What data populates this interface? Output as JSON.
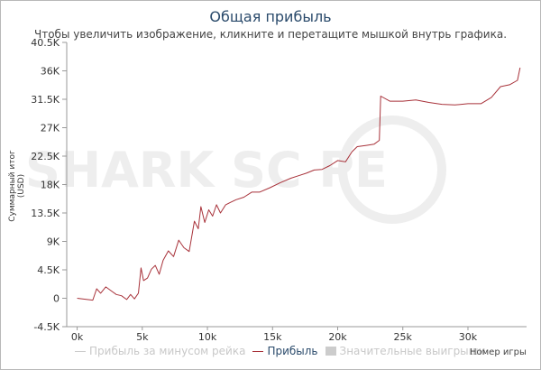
{
  "chart_data": {
    "type": "line",
    "title": "Общая прибыль",
    "subtitle": "Чтобы увеличить изображение, кликните и перетащите мышкой внутрь графика.",
    "ylabel": "Суммарный итог (USD)",
    "xlabel": "Номер игры",
    "xlim": [
      -800,
      34500
    ],
    "ylim": [
      -4500,
      40500
    ],
    "x_ticks": [
      {
        "value": 0,
        "label": "0k"
      },
      {
        "value": 5000,
        "label": "5k"
      },
      {
        "value": 10000,
        "label": "10k"
      },
      {
        "value": 15000,
        "label": "15k"
      },
      {
        "value": 20000,
        "label": "20k"
      },
      {
        "value": 25000,
        "label": "25k"
      },
      {
        "value": 30000,
        "label": "30k"
      }
    ],
    "y_ticks": [
      {
        "value": -4500,
        "label": "-4.5K"
      },
      {
        "value": 0,
        "label": "0"
      },
      {
        "value": 4500,
        "label": "4.5K"
      },
      {
        "value": 9000,
        "label": "9K"
      },
      {
        "value": 13500,
        "label": "13.5K"
      },
      {
        "value": 18000,
        "label": "18K"
      },
      {
        "value": 22500,
        "label": "22.5K"
      },
      {
        "value": 27000,
        "label": "27K"
      },
      {
        "value": 31500,
        "label": "31.5K"
      },
      {
        "value": 36000,
        "label": "36K"
      },
      {
        "value": 40500,
        "label": "40.5K"
      }
    ],
    "grid": false,
    "legend_position": "bottom",
    "series": [
      {
        "name": "Прибыль",
        "color": "#a8323a",
        "x": [
          0,
          1200,
          1500,
          1800,
          2200,
          2600,
          3000,
          3400,
          3800,
          4100,
          4400,
          4700,
          4900,
          5100,
          5400,
          5700,
          6000,
          6300,
          6600,
          7000,
          7400,
          7800,
          8200,
          8600,
          9000,
          9300,
          9500,
          9800,
          10100,
          10400,
          10700,
          11000,
          11400,
          11800,
          12200,
          12800,
          13400,
          14000,
          14800,
          15600,
          16400,
          17000,
          17600,
          18200,
          18800,
          19400,
          20000,
          20600,
          21100,
          21500,
          22200,
          22800,
          23200,
          23300,
          24000,
          25000,
          26000,
          27000,
          28000,
          29000,
          30000,
          31000,
          31800,
          32500,
          33200,
          33800,
          34000
        ],
        "y": [
          0,
          -300,
          1500,
          800,
          1800,
          1200,
          600,
          400,
          -200,
          600,
          -100,
          800,
          4800,
          2800,
          3200,
          4600,
          5200,
          3800,
          6000,
          7500,
          6600,
          9200,
          8000,
          7400,
          12200,
          11000,
          14500,
          12000,
          14000,
          13000,
          14800,
          13500,
          14800,
          15200,
          15600,
          16000,
          16800,
          16800,
          17500,
          18300,
          19000,
          19400,
          19800,
          20300,
          20400,
          21000,
          21800,
          21600,
          23200,
          24000,
          24200,
          24400,
          25000,
          32000,
          31200,
          31200,
          31400,
          31000,
          30700,
          30600,
          30800,
          30800,
          31800,
          33500,
          33800,
          34500,
          36500
        ]
      }
    ]
  },
  "legend": [
    {
      "label": "Прибыль за минусом рейка",
      "state": "off",
      "color": "#cccccc"
    },
    {
      "label": "Прибыль",
      "state": "on",
      "color": "#a8323a"
    },
    {
      "label": "Значительные выигрыши",
      "state": "off",
      "color": "#cccccc"
    }
  ],
  "watermark": "SHARK SC PE"
}
